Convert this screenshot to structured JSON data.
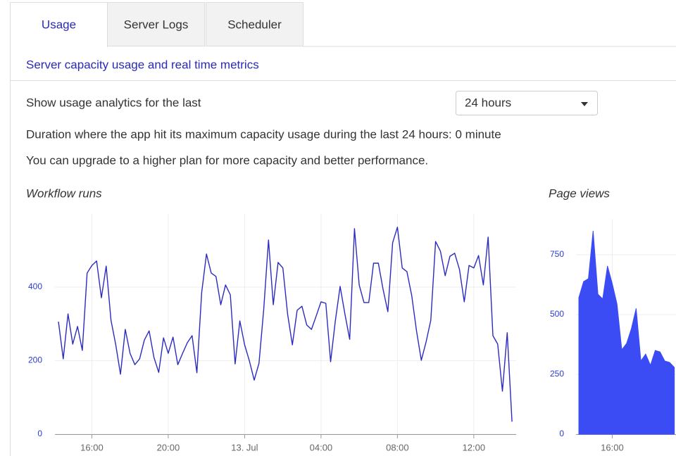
{
  "tabs": [
    "Usage",
    "Server Logs",
    "Scheduler"
  ],
  "header": {
    "subtitle": "Server capacity usage and real time metrics"
  },
  "filter": {
    "label": "Show usage analytics for the last",
    "selected": "24 hours"
  },
  "messages": [
    "Duration where the app hit its maximum capacity usage during the last 24 hours: 0 minute",
    "You can upgrade to a higher plan for more capacity and better performance."
  ],
  "chart_data": [
    {
      "type": "line",
      "title": "Workflow runs",
      "color": "#2b2bc0",
      "grid": true,
      "ylim": [
        0,
        600
      ],
      "yticks": [
        0,
        200,
        400
      ],
      "categories": [
        null,
        null,
        null,
        null,
        null,
        null,
        null,
        "16:00",
        null,
        null,
        null,
        null,
        null,
        null,
        null,
        null,
        null,
        null,
        null,
        null,
        null,
        null,
        null,
        "20:00",
        null,
        null,
        null,
        null,
        null,
        null,
        null,
        null,
        null,
        null,
        null,
        null,
        null,
        null,
        null,
        "13. Jul",
        null,
        null,
        null,
        null,
        null,
        null,
        null,
        null,
        null,
        null,
        null,
        null,
        null,
        null,
        null,
        "04:00",
        null,
        null,
        null,
        null,
        null,
        null,
        null,
        null,
        null,
        null,
        null,
        null,
        null,
        null,
        null,
        "08:00",
        null,
        null,
        null,
        null,
        null,
        null,
        null,
        null,
        null,
        null,
        null,
        null,
        null,
        null,
        null,
        "12:00",
        null,
        null,
        null,
        null,
        null,
        null,
        null,
        null
      ],
      "values": [
        306,
        205,
        327,
        245,
        293,
        228,
        438,
        459,
        471,
        371,
        457,
        310,
        243,
        163,
        285,
        220,
        189,
        205,
        256,
        281,
        209,
        168,
        262,
        220,
        264,
        189,
        220,
        249,
        268,
        167,
        385,
        490,
        438,
        429,
        352,
        406,
        379,
        191,
        308,
        243,
        199,
        147,
        193,
        339,
        528,
        352,
        467,
        452,
        327,
        243,
        337,
        348,
        297,
        285,
        322,
        360,
        356,
        197,
        308,
        402,
        327,
        258,
        559,
        406,
        358,
        358,
        465,
        465,
        394,
        333,
        521,
        563,
        452,
        442,
        377,
        281,
        201,
        251,
        310,
        524,
        498,
        431,
        484,
        492,
        448,
        360,
        459,
        452,
        486,
        406,
        536,
        268,
        245,
        117,
        276,
        34
      ]
    },
    {
      "type": "area",
      "title": "Page views",
      "color": "#3b4cf5",
      "grid": true,
      "ylim": [
        0,
        900
      ],
      "yticks": [
        0,
        250,
        500,
        750
      ],
      "categories": [
        null,
        null,
        null,
        null,
        null,
        null,
        null,
        "16:00",
        null,
        null,
        null,
        null,
        null,
        null,
        null,
        null,
        null,
        null,
        null,
        null,
        null
      ],
      "values": [
        571,
        638,
        650,
        850,
        585,
        565,
        703,
        629,
        544,
        353,
        379,
        441,
        526,
        306,
        335,
        288,
        350,
        344,
        306,
        300,
        279
      ]
    }
  ]
}
